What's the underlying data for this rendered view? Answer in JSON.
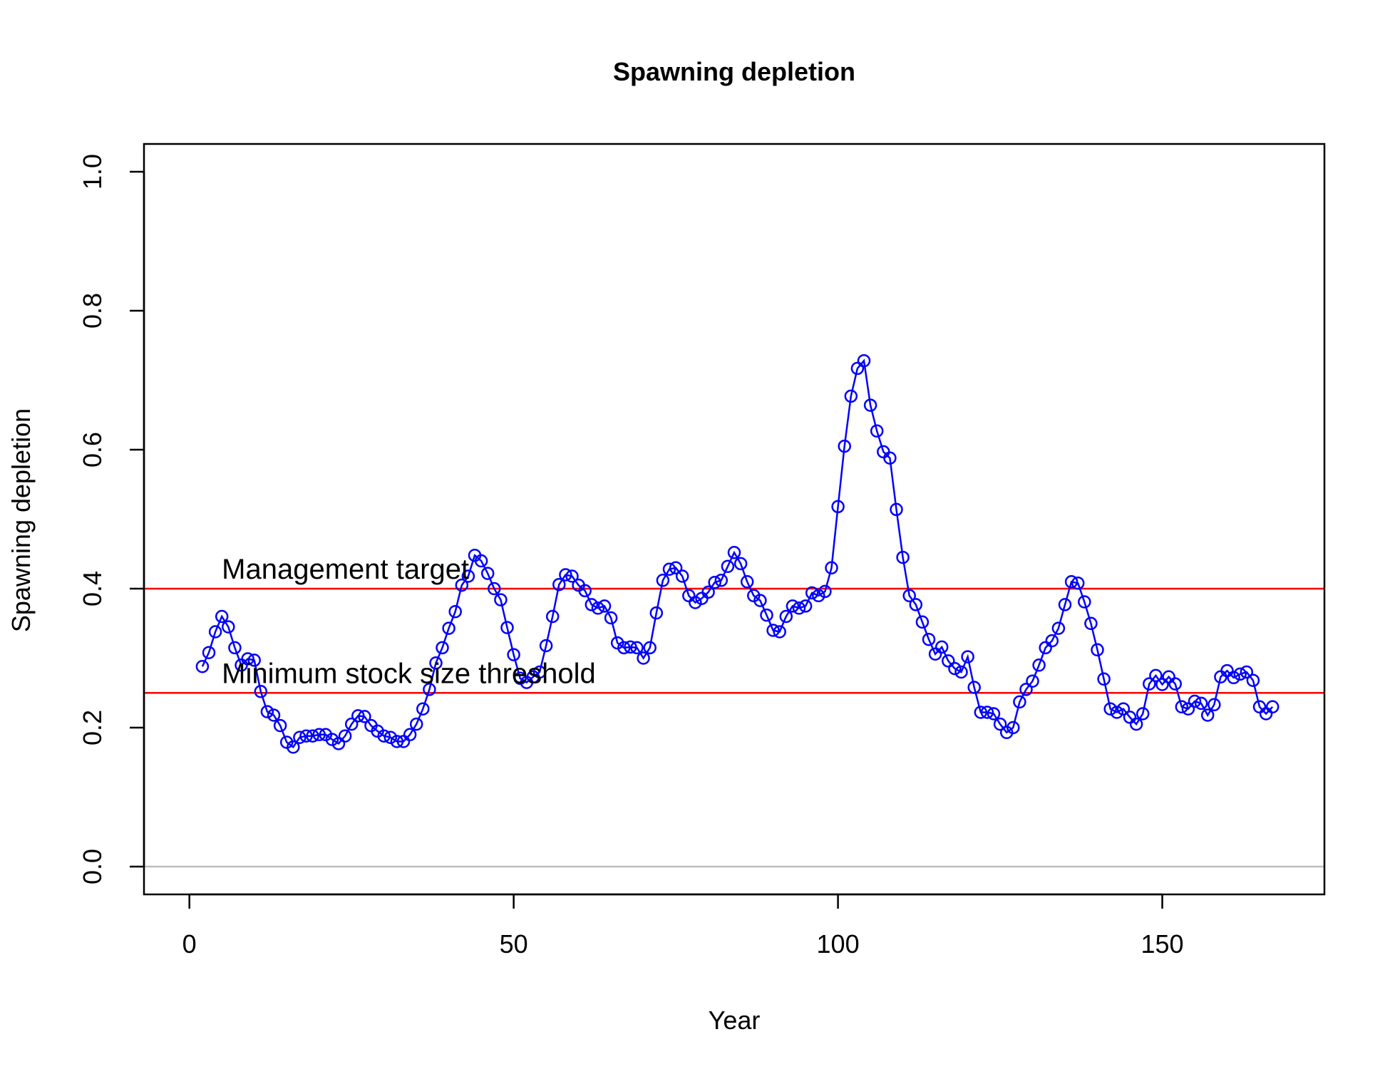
{
  "chart_data": {
    "type": "line",
    "title": "Spawning depletion",
    "xlabel": "Year",
    "ylabel": "Spawning depletion",
    "xlim": [
      -7,
      175
    ],
    "ylim": [
      -0.04,
      1.04
    ],
    "x_ticks": [
      0,
      50,
      100,
      150
    ],
    "x_tick_labels": [
      "0",
      "50",
      "100",
      "150"
    ],
    "y_ticks": [
      0.0,
      0.2,
      0.4,
      0.6,
      0.8,
      1.0
    ],
    "y_tick_labels": [
      "0.0",
      "0.2",
      "0.4",
      "0.6",
      "0.8",
      "1.0"
    ],
    "grid": false,
    "series": [
      {
        "color": "#0000ff",
        "marker": "open-circle",
        "x_start": 2,
        "x_step": 1,
        "values": [
          0.288,
          0.308,
          0.338,
          0.36,
          0.345,
          0.315,
          0.29,
          0.299,
          0.297,
          0.252,
          0.223,
          0.218,
          0.203,
          0.179,
          0.172,
          0.186,
          0.188,
          0.188,
          0.19,
          0.19,
          0.183,
          0.177,
          0.188,
          0.205,
          0.217,
          0.216,
          0.203,
          0.195,
          0.188,
          0.186,
          0.18,
          0.18,
          0.19,
          0.205,
          0.227,
          0.255,
          0.293,
          0.315,
          0.343,
          0.367,
          0.405,
          0.418,
          0.448,
          0.44,
          0.422,
          0.4,
          0.384,
          0.344,
          0.305,
          0.271,
          0.265,
          0.273,
          0.28,
          0.318,
          0.36,
          0.406,
          0.42,
          0.418,
          0.405,
          0.397,
          0.377,
          0.372,
          0.375,
          0.358,
          0.322,
          0.315,
          0.316,
          0.315,
          0.3,
          0.315,
          0.365,
          0.412,
          0.428,
          0.43,
          0.418,
          0.39,
          0.38,
          0.386,
          0.395,
          0.409,
          0.412,
          0.432,
          0.452,
          0.436,
          0.41,
          0.39,
          0.383,
          0.362,
          0.34,
          0.338,
          0.36,
          0.375,
          0.372,
          0.375,
          0.394,
          0.39,
          0.396,
          0.43,
          0.518,
          0.605,
          0.677,
          0.717,
          0.728,
          0.664,
          0.627,
          0.597,
          0.588,
          0.514,
          0.445,
          0.39,
          0.377,
          0.352,
          0.327,
          0.306,
          0.316,
          0.296,
          0.285,
          0.28,
          0.302,
          0.258,
          0.222,
          0.222,
          0.22,
          0.205,
          0.193,
          0.2,
          0.237,
          0.255,
          0.267,
          0.29,
          0.315,
          0.325,
          0.343,
          0.377,
          0.41,
          0.408,
          0.381,
          0.35,
          0.312,
          0.27,
          0.227,
          0.222,
          0.227,
          0.215,
          0.205,
          0.22,
          0.263,
          0.275,
          0.262,
          0.273,
          0.263,
          0.23,
          0.227,
          0.238,
          0.235,
          0.218,
          0.233,
          0.273,
          0.282,
          0.272,
          0.277,
          0.28,
          0.268,
          0.23,
          0.22,
          0.23
        ]
      }
    ],
    "reference_lines": [
      {
        "y": 0.4,
        "label": "Management target",
        "color": "#ff0000",
        "label_x": 5
      },
      {
        "y": 0.25,
        "label": "Minimum stock size threshold",
        "color": "#ff0000",
        "label_x": 5
      },
      {
        "y": 0.0,
        "label": "",
        "color": "#bebebe"
      }
    ],
    "box_color": "#000000"
  }
}
